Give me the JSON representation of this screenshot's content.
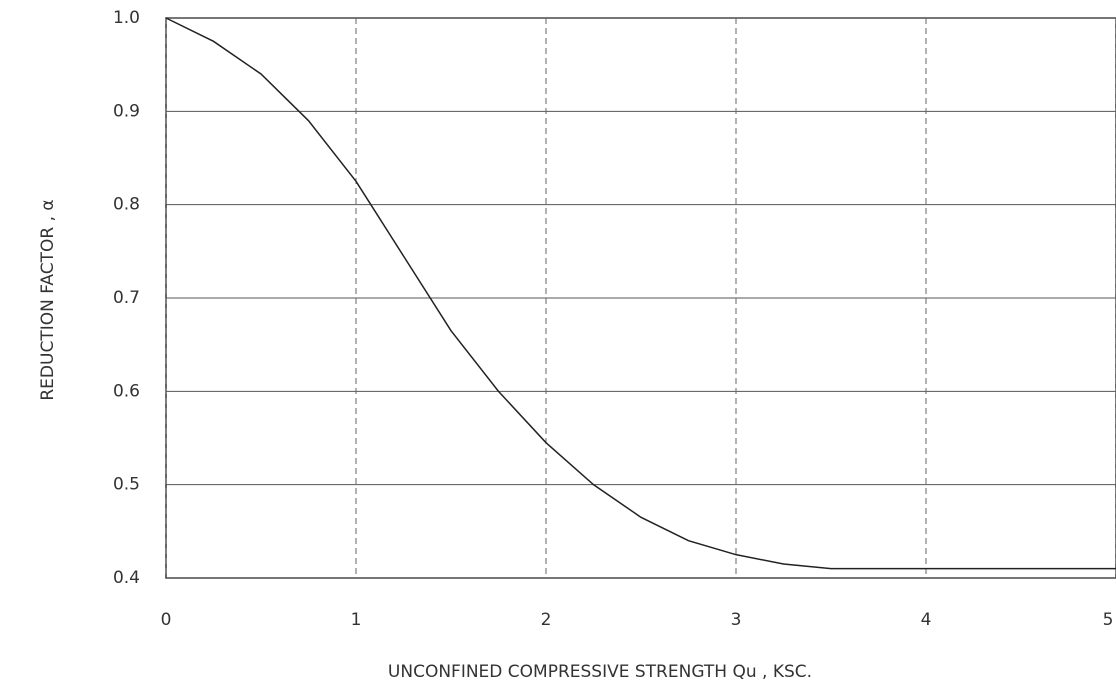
{
  "chart_data": {
    "type": "line",
    "xlabel": "UNCONFINED COMPRESSIVE STRENGTH Qu , KSC.",
    "ylabel": "REDUCTION FACTOR , α",
    "x": [
      0,
      0.25,
      0.5,
      0.75,
      1.0,
      1.25,
      1.5,
      1.75,
      2.0,
      2.25,
      2.5,
      2.75,
      3.0,
      3.25,
      3.5,
      4.0,
      4.5,
      5.0
    ],
    "series": [
      {
        "color": "#222",
        "values": [
          1.0,
          0.975,
          0.94,
          0.89,
          0.825,
          0.745,
          0.665,
          0.6,
          0.545,
          0.5,
          0.465,
          0.44,
          0.425,
          0.415,
          0.41,
          0.41,
          0.41,
          0.41
        ]
      }
    ],
    "xlim": [
      0,
      5
    ],
    "ylim": [
      0.4,
      1.0
    ],
    "xticks": [
      0,
      1,
      2,
      3,
      4,
      5
    ],
    "yticks": [
      0.4,
      0.5,
      0.6,
      0.7,
      0.8,
      0.9,
      {
        "value": 1.0,
        "label": "1.0"
      }
    ],
    "grid": true
  }
}
